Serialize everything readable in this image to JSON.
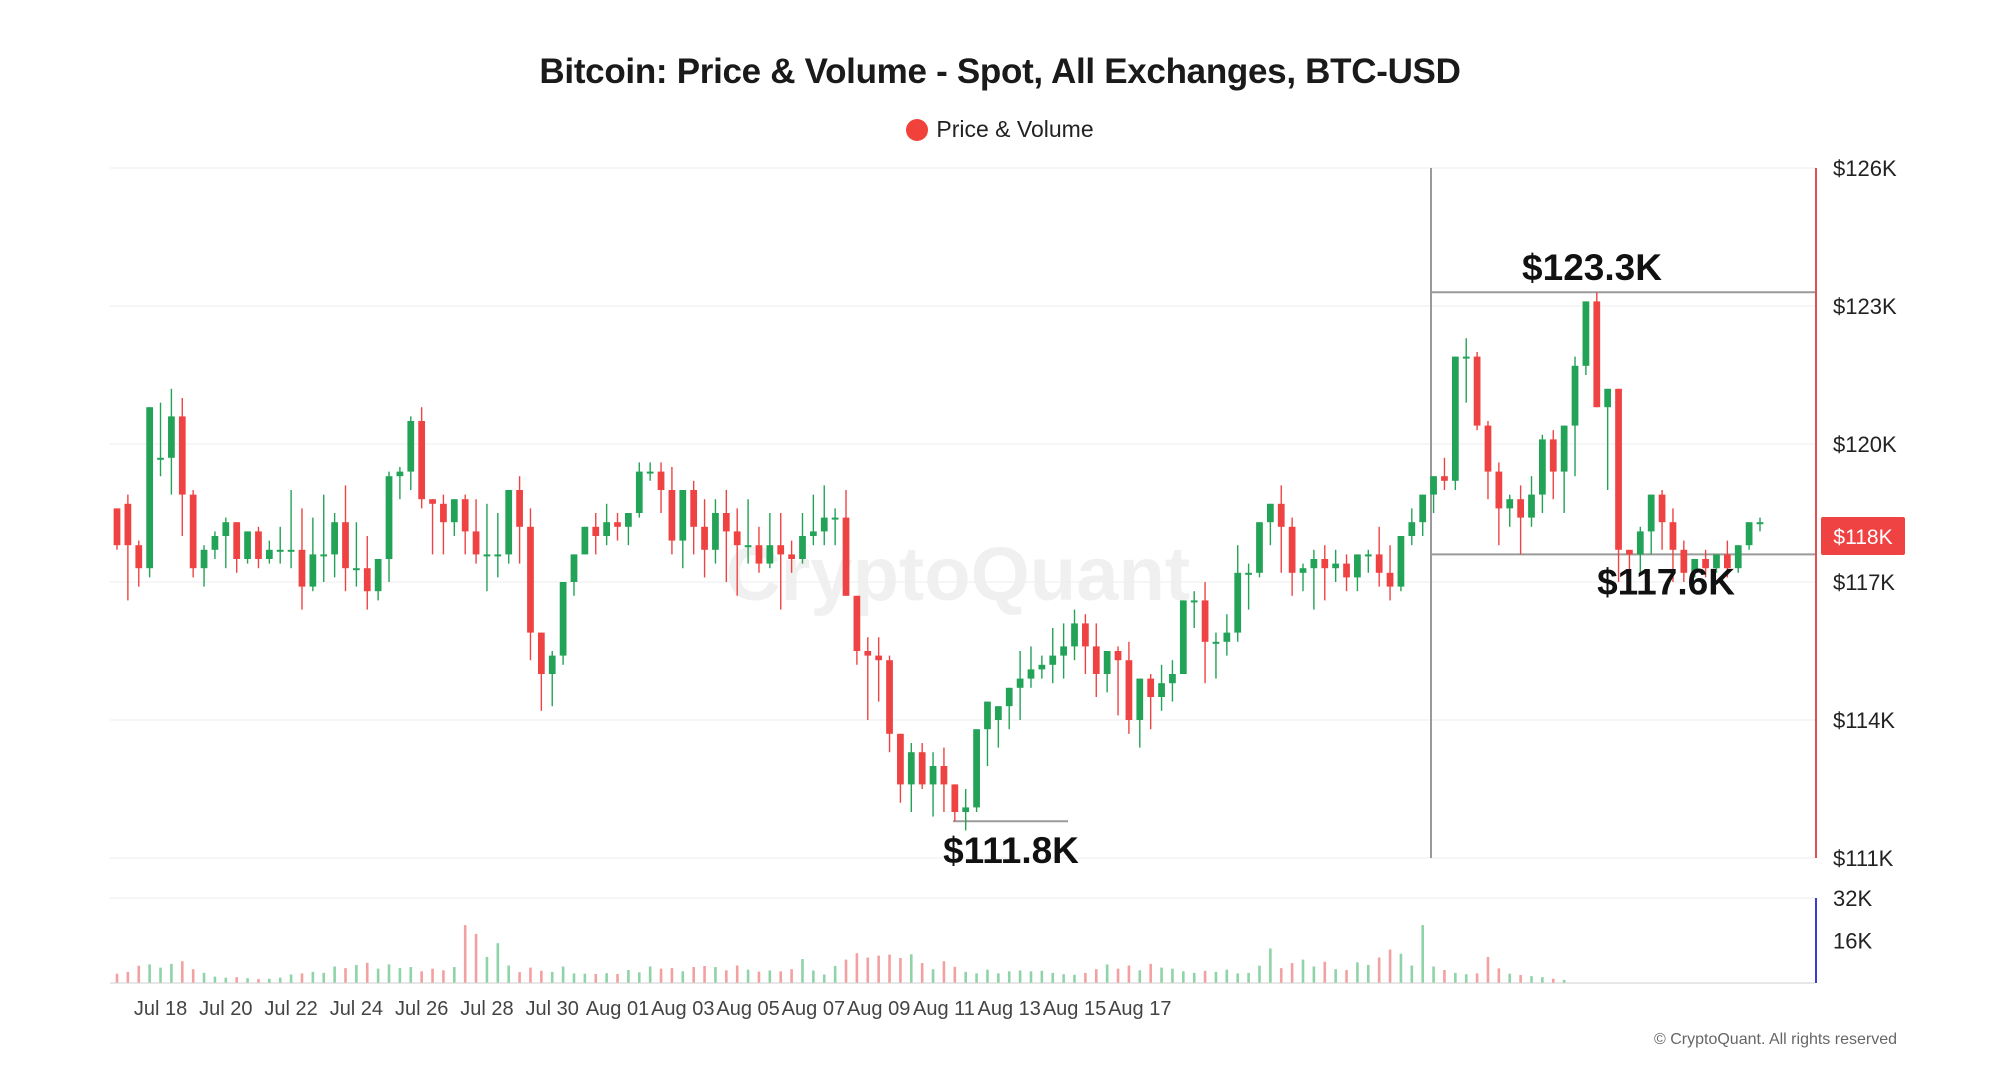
{
  "title": "Bitcoin: Price & Volume - Spot, All Exchanges, BTC-USD",
  "legend": {
    "label": "Price & Volume",
    "color": "#f0423b"
  },
  "watermark": "CryptoQuant",
  "copyright": "© CryptoQuant. All rights reserved",
  "colors": {
    "up": "#23a357",
    "down": "#ef4343",
    "guide": "#9a9a9a",
    "grid": "#eeeeee",
    "axis_price": "#e05050",
    "axis_volume": "#3b3bd0"
  },
  "chart_data": {
    "type": "candlestick",
    "unit": "USD",
    "ylim": [
      111000,
      126000
    ],
    "y_ticks": [
      {
        "label": "$126K",
        "value": 126000
      },
      {
        "label": "$123K",
        "value": 123000
      },
      {
        "label": "$120K",
        "value": 120000
      },
      {
        "label": "$117K",
        "value": 117000
      },
      {
        "label": "$114K",
        "value": 114000
      },
      {
        "label": "$111K",
        "value": 111000
      }
    ],
    "x_ticks": [
      "Jul 18",
      "Jul 20",
      "Jul 22",
      "Jul 24",
      "Jul 26",
      "Jul 28",
      "Jul 30",
      "Aug 01",
      "Aug 03",
      "Aug 05",
      "Aug 07",
      "Aug 09",
      "Aug 11",
      "Aug 13",
      "Aug 15",
      "Aug 17"
    ],
    "current_price_label": "$118K",
    "current_price": 118000,
    "grid": true,
    "volume": {
      "ylim": [
        0,
        32000
      ],
      "ticks": [
        {
          "label": "32K",
          "value": 32000
        },
        {
          "label": "16K",
          "value": 16000
        }
      ],
      "values": [
        3500,
        4200,
        6500,
        7000,
        5800,
        7200,
        8200,
        5200,
        3800,
        2400,
        2000,
        2200,
        1800,
        1500,
        1600,
        2000,
        3200,
        3600,
        4200,
        3800,
        6200,
        5600,
        6800,
        7600,
        5400,
        7000,
        5600,
        6000,
        4400,
        5400,
        4800,
        6000,
        21800,
        18500,
        9800,
        15000,
        6600,
        4100,
        5800,
        4600,
        4200,
        6200,
        3600,
        3500,
        3400,
        3700,
        3400,
        4900,
        4000,
        6200,
        5400,
        5600,
        4400,
        6000,
        6400,
        6000,
        4800,
        6600,
        5000,
        4300,
        4700,
        4400,
        5200,
        9000,
        4700,
        3200,
        6400,
        8800,
        11200,
        9600,
        10300,
        10700,
        9400,
        10800,
        7500,
        5200,
        8200,
        6100,
        4200,
        3600,
        5000,
        3600,
        4400,
        4700,
        4400,
        4600,
        3800,
        3300,
        3100,
        3800,
        5200,
        7000,
        5400,
        6600,
        4800,
        7200,
        5800,
        5400,
        4400,
        3800,
        4600,
        4200,
        5000,
        3600,
        3800,
        6500,
        13000,
        5600,
        7500,
        8800,
        6200,
        8000,
        5200,
        4900,
        7800,
        6800,
        9600,
        12600,
        11000,
        6600,
        21800,
        6200,
        4900,
        3800,
        3300,
        3600,
        9800,
        5500,
        3500,
        3000,
        2600,
        2200,
        1600,
        1200
      ]
    },
    "candles": [
      [
        118600,
        118600,
        117800,
        117700,
        117000
      ],
      [
        118700,
        118900,
        117800,
        116600,
        117600
      ],
      [
        117800,
        117900,
        117300,
        116900,
        119400
      ],
      [
        117300,
        117400,
        120800,
        117100,
        120700
      ],
      [
        119700,
        120900,
        119700,
        119300,
        119700
      ],
      [
        119700,
        121200,
        120600,
        118900,
        121200
      ],
      [
        120600,
        121000,
        118900,
        118000,
        118900
      ],
      [
        118900,
        119000,
        117300,
        117100,
        117300
      ],
      [
        117300,
        117800,
        117700,
        116900,
        116900
      ],
      [
        117700,
        118100,
        118000,
        117500,
        117500
      ],
      [
        118000,
        118400,
        118300,
        117300,
        117300
      ],
      [
        118300,
        118300,
        117500,
        117200,
        117200
      ],
      [
        117500,
        117900,
        118100,
        117400,
        118100
      ],
      [
        118100,
        118200,
        117500,
        117300,
        117500
      ],
      [
        117500,
        117900,
        117700,
        117400,
        117700
      ],
      [
        117700,
        118200,
        117700,
        117400,
        117400
      ],
      [
        117700,
        119000,
        117700,
        117300,
        117300
      ],
      [
        117700,
        118600,
        116900,
        116400,
        116400
      ],
      [
        116900,
        118400,
        117600,
        116800,
        116800
      ],
      [
        117600,
        118900,
        117600,
        117000,
        119200
      ],
      [
        117600,
        118500,
        118300,
        117100,
        118500
      ],
      [
        118300,
        119100,
        117300,
        116800,
        117800
      ],
      [
        117300,
        118300,
        117300,
        116900,
        118300
      ],
      [
        117300,
        118000,
        116800,
        116400,
        117100
      ],
      [
        116800,
        116800,
        117500,
        116600,
        117500
      ],
      [
        117500,
        119400,
        119300,
        117000,
        119400
      ],
      [
        119300,
        119500,
        119400,
        118800,
        120500
      ],
      [
        119400,
        120600,
        120500,
        119000,
        120900
      ],
      [
        120500,
        120800,
        118800,
        118600,
        118800
      ],
      [
        118800,
        118800,
        118700,
        117600,
        118600
      ],
      [
        118700,
        118900,
        118300,
        117600,
        118300
      ],
      [
        118300,
        118600,
        118800,
        118000,
        118100
      ],
      [
        118800,
        118900,
        118100,
        117600,
        117900
      ],
      [
        118100,
        118800,
        117600,
        117400,
        118700
      ],
      [
        117600,
        118700,
        117600,
        116800,
        117300
      ],
      [
        117600,
        118500,
        117600,
        117100,
        117400
      ],
      [
        117600,
        118900,
        119000,
        117400,
        119300
      ],
      [
        119000,
        119300,
        118200,
        117400,
        117900
      ],
      [
        118200,
        118600,
        115900,
        115300,
        115300
      ],
      [
        115900,
        115900,
        115000,
        114200,
        114200
      ],
      [
        115000,
        115500,
        115400,
        114300,
        114300
      ],
      [
        115400,
        115800,
        117000,
        115200,
        117500
      ],
      [
        117000,
        117500,
        117600,
        116700,
        117600
      ],
      [
        117600,
        118100,
        118200,
        117700,
        118100
      ],
      [
        118200,
        118500,
        118000,
        117600,
        118300
      ],
      [
        118000,
        118700,
        118300,
        117800,
        118400
      ],
      [
        118300,
        118500,
        118200,
        117900,
        118000
      ],
      [
        118200,
        118500,
        118500,
        117800,
        118100
      ],
      [
        118500,
        119600,
        119400,
        118400,
        119600
      ],
      [
        119400,
        119600,
        119400,
        119200,
        119200
      ],
      [
        119400,
        119600,
        119000,
        118500,
        119000
      ],
      [
        119000,
        119500,
        117900,
        117600,
        117900
      ],
      [
        117900,
        118600,
        119000,
        117300,
        118500
      ],
      [
        119000,
        119200,
        118200,
        117600,
        117600
      ],
      [
        118200,
        118800,
        117700,
        117100,
        118400
      ],
      [
        117700,
        118800,
        118500,
        117400,
        117700
      ],
      [
        118500,
        119000,
        118100,
        117000,
        117000
      ],
      [
        118100,
        118600,
        117800,
        116700,
        116800
      ],
      [
        117800,
        118800,
        117800,
        117400,
        117500
      ],
      [
        117800,
        118200,
        117400,
        117200,
        117800
      ],
      [
        117400,
        118500,
        117800,
        117300,
        118300
      ],
      [
        117800,
        118500,
        117600,
        116400,
        116500
      ],
      [
        117600,
        117900,
        117500,
        117200,
        117500
      ],
      [
        117500,
        118500,
        118000,
        117400,
        118200
      ],
      [
        118000,
        118900,
        118100,
        117800,
        118700
      ],
      [
        118100,
        119100,
        118400,
        117800,
        118800
      ],
      [
        118400,
        118600,
        118400,
        117800,
        118200
      ],
      [
        118400,
        119000,
        116700,
        116700,
        116700
      ],
      [
        116700,
        116700,
        115500,
        115200,
        115200
      ],
      [
        115500,
        115800,
        115400,
        114000,
        114000
      ],
      [
        115400,
        115800,
        115300,
        114400,
        114400
      ],
      [
        115300,
        115400,
        113700,
        113300,
        113300
      ],
      [
        113700,
        113700,
        112600,
        112200,
        112200
      ],
      [
        112600,
        113500,
        113300,
        112000,
        113600
      ],
      [
        113300,
        113500,
        112600,
        112500,
        113000
      ],
      [
        112600,
        113300,
        113000,
        111900,
        113400
      ],
      [
        113000,
        113400,
        112600,
        112000,
        113000
      ],
      [
        112600,
        112600,
        112000,
        111800,
        112500
      ],
      [
        112000,
        112500,
        112100,
        111600,
        112800
      ],
      [
        112100,
        113800,
        113800,
        112000,
        114200
      ],
      [
        113800,
        114400,
        114400,
        113000,
        114000
      ],
      [
        114000,
        114200,
        114300,
        113400,
        114800
      ],
      [
        114300,
        114700,
        114700,
        113800,
        115000
      ],
      [
        114700,
        115500,
        114900,
        114000,
        115000
      ],
      [
        114900,
        115600,
        115100,
        114700,
        115200
      ],
      [
        115100,
        115400,
        115200,
        114900,
        115700
      ],
      [
        115200,
        116000,
        115400,
        114800,
        115800
      ],
      [
        115400,
        116100,
        115600,
        114900,
        115500
      ],
      [
        115600,
        116400,
        116100,
        115300,
        116400
      ],
      [
        116100,
        116300,
        115600,
        115000,
        115600
      ],
      [
        115600,
        116100,
        115000,
        114500,
        114500
      ],
      [
        115000,
        115400,
        115500,
        114600,
        114600
      ],
      [
        115500,
        115600,
        115300,
        114100,
        114700
      ],
      [
        115300,
        115700,
        114000,
        113700,
        113700
      ],
      [
        114000,
        114600,
        114900,
        113400,
        114700
      ],
      [
        114900,
        115000,
        114500,
        113800,
        114200
      ],
      [
        114500,
        115200,
        114800,
        114200,
        115100
      ],
      [
        114800,
        115300,
        115000,
        114400,
        115000
      ],
      [
        115000,
        115700,
        116600,
        115000,
        116600
      ],
      [
        116600,
        116800,
        116600,
        116000,
        116900
      ],
      [
        116600,
        117000,
        115700,
        114800,
        115000
      ],
      [
        115700,
        115900,
        115700,
        114900,
        115000
      ],
      [
        115700,
        116300,
        115900,
        115400,
        116500
      ],
      [
        115900,
        117800,
        117200,
        115700,
        117400
      ],
      [
        117200,
        117400,
        117200,
        116400,
        117400
      ],
      [
        117200,
        117500,
        118300,
        117100,
        118700
      ],
      [
        118300,
        118500,
        118700,
        117800,
        119000
      ],
      [
        118700,
        119100,
        118200,
        117200,
        118600
      ],
      [
        118200,
        118400,
        117200,
        116700,
        117600
      ],
      [
        117200,
        117400,
        117300,
        116800,
        117700
      ],
      [
        117300,
        117700,
        117500,
        116400,
        117200
      ],
      [
        117500,
        117800,
        117300,
        116600,
        117400
      ],
      [
        117300,
        117700,
        117400,
        117000,
        117200
      ],
      [
        117400,
        117600,
        117100,
        116800,
        117300
      ],
      [
        117100,
        117500,
        117600,
        116800,
        117700
      ],
      [
        117600,
        117700,
        117600,
        117200,
        117800
      ],
      [
        117600,
        118200,
        117200,
        116900,
        117100
      ],
      [
        117200,
        117800,
        116900,
        116600,
        116900
      ],
      [
        116900,
        117000,
        118000,
        116800,
        118300
      ],
      [
        118000,
        118600,
        118300,
        117800,
        118500
      ],
      [
        118300,
        118900,
        118900,
        118000,
        119000
      ],
      [
        118900,
        119100,
        119300,
        118500,
        119500
      ],
      [
        119300,
        119700,
        119200,
        119000,
        119800
      ],
      [
        119200,
        119500,
        121900,
        119000,
        122200
      ],
      [
        121900,
        122300,
        121900,
        120900,
        120900
      ],
      [
        121900,
        122000,
        120400,
        120300,
        120300
      ],
      [
        120400,
        120500,
        119400,
        118800,
        118800
      ],
      [
        119400,
        119600,
        118600,
        117800,
        117800
      ],
      [
        118600,
        118900,
        118800,
        118200,
        118200
      ],
      [
        118800,
        119100,
        118400,
        117600,
        117600
      ],
      [
        118400,
        119300,
        118900,
        118200,
        119300
      ],
      [
        118900,
        120200,
        120100,
        118500,
        120300
      ],
      [
        120100,
        120300,
        119400,
        118800,
        119000
      ],
      [
        119400,
        119600,
        120400,
        118500,
        120600
      ],
      [
        120400,
        121900,
        121700,
        119300,
        122200
      ],
      [
        121700,
        123000,
        123100,
        121500,
        123500
      ],
      [
        123100,
        123300,
        120800,
        120800,
        121000
      ],
      [
        120800,
        121000,
        121200,
        119000,
        120800
      ],
      [
        121200,
        121200,
        117700,
        117000,
        117200
      ],
      [
        117700,
        117700,
        117600,
        117000,
        117600
      ],
      [
        117600,
        118200,
        118100,
        117200,
        118400
      ],
      [
        118100,
        118700,
        118900,
        117600,
        118800
      ],
      [
        118900,
        119000,
        118300,
        117700,
        118800
      ],
      [
        118300,
        118600,
        117700,
        117000,
        118500
      ],
      [
        117700,
        117900,
        117200,
        117000,
        117300
      ],
      [
        117200,
        117400,
        117500,
        117100,
        117400
      ],
      [
        117500,
        117700,
        117300,
        117100,
        117500
      ],
      [
        117300,
        117600,
        117600,
        117200,
        117600
      ],
      [
        117600,
        117900,
        117300,
        117100,
        117500
      ],
      [
        117300,
        117500,
        117800,
        117200,
        117600
      ],
      [
        117800,
        118200,
        118300,
        117700,
        118300
      ],
      [
        118300,
        118400,
        118300,
        118100,
        118200
      ]
    ],
    "candle_note": "each candle: [open, high-shadow-extent, close, low-shadow-extent, alt] ignored fields beyond index 3",
    "annotations": [
      {
        "label": "$123.3K",
        "value": 123300
      },
      {
        "label": "$117.6K",
        "value": 117600
      },
      {
        "label": "$111.8K",
        "value": 111800
      }
    ]
  }
}
